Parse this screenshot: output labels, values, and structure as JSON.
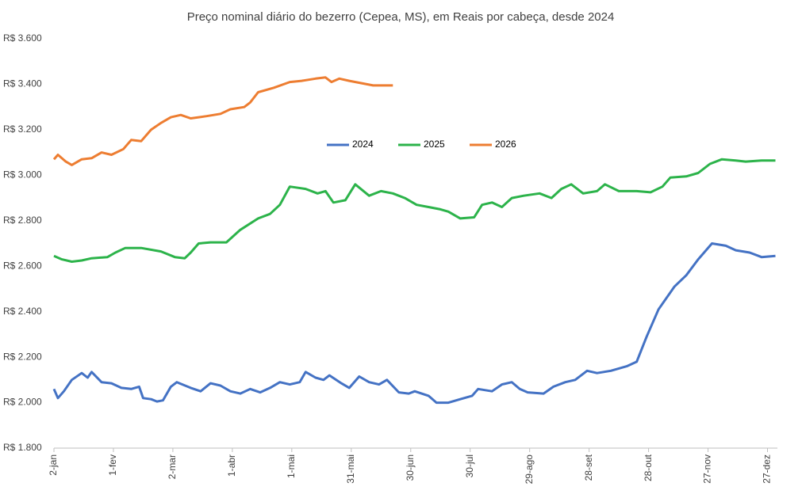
{
  "chart_data": {
    "type": "line",
    "title": "Preço nominal diário do bezerro (Cepea, MS), em Reais por cabeça, desde 2024",
    "xlim": [
      1,
      366
    ],
    "xticks": [
      {
        "value": 1,
        "label": "2-jan"
      },
      {
        "value": 31,
        "label": "1-fev"
      },
      {
        "value": 61,
        "label": "2-mar"
      },
      {
        "value": 91,
        "label": "1-abr"
      },
      {
        "value": 121,
        "label": "1-mai"
      },
      {
        "value": 151,
        "label": "31-mai"
      },
      {
        "value": 181,
        "label": "30-jun"
      },
      {
        "value": 211,
        "label": "30-jul"
      },
      {
        "value": 241,
        "label": "29-ago"
      },
      {
        "value": 271,
        "label": "28-set"
      },
      {
        "value": 301,
        "label": "28-out"
      },
      {
        "value": 331,
        "label": "27-nov"
      },
      {
        "value": 361,
        "label": "27-dez"
      }
    ],
    "ylim": [
      1800,
      3600
    ],
    "yticks": [
      {
        "value": 1800,
        "label": "R$ 1.800"
      },
      {
        "value": 2000,
        "label": "R$ 2.000"
      },
      {
        "value": 2200,
        "label": "R$ 2.200"
      },
      {
        "value": 2400,
        "label": "R$ 2.400"
      },
      {
        "value": 2600,
        "label": "R$ 2.600"
      },
      {
        "value": 2800,
        "label": "R$ 2.800"
      },
      {
        "value": 3000,
        "label": "R$ 3.000"
      },
      {
        "value": 3200,
        "label": "R$ 3.200"
      },
      {
        "value": 3400,
        "label": "R$ 3.400"
      },
      {
        "value": 3600,
        "label": "R$ 3.600"
      }
    ],
    "grid": false,
    "legend": "center",
    "series": [
      {
        "name": "2024",
        "color": "#4472c4",
        "x": [
          1,
          3,
          6,
          10,
          15,
          18,
          20,
          25,
          30,
          35,
          40,
          44,
          46,
          50,
          53,
          56,
          60,
          63,
          70,
          75,
          80,
          85,
          90,
          95,
          100,
          105,
          110,
          115,
          120,
          125,
          128,
          133,
          137,
          140,
          146,
          150,
          155,
          160,
          165,
          169,
          175,
          180,
          183,
          190,
          194,
          200,
          206,
          212,
          215,
          222,
          227,
          232,
          236,
          240,
          248,
          253,
          259,
          264,
          270,
          275,
          282,
          290,
          295,
          300,
          306,
          314,
          320,
          326,
          333,
          340,
          345,
          352,
          358,
          365
        ],
        "values": [
          2060,
          2020,
          2050,
          2100,
          2130,
          2110,
          2135,
          2090,
          2085,
          2065,
          2060,
          2070,
          2020,
          2015,
          2005,
          2010,
          2070,
          2090,
          2065,
          2050,
          2085,
          2075,
          2050,
          2040,
          2060,
          2045,
          2065,
          2090,
          2080,
          2090,
          2135,
          2110,
          2100,
          2120,
          2085,
          2065,
          2115,
          2090,
          2080,
          2100,
          2045,
          2040,
          2050,
          2030,
          2000,
          2000,
          2015,
          2030,
          2060,
          2050,
          2080,
          2090,
          2060,
          2045,
          2040,
          2070,
          2090,
          2100,
          2140,
          2130,
          2140,
          2160,
          2180,
          2290,
          2410,
          2510,
          2560,
          2630,
          2700,
          2690,
          2670,
          2660,
          2640,
          2645
        ]
      },
      {
        "name": "2025",
        "color": "#2cb34a",
        "x": [
          1,
          5,
          10,
          15,
          20,
          28,
          32,
          37,
          45,
          55,
          62,
          67,
          70,
          74,
          80,
          88,
          95,
          104,
          110,
          115,
          120,
          128,
          134,
          138,
          142,
          148,
          153,
          160,
          166,
          172,
          178,
          184,
          190,
          196,
          200,
          206,
          213,
          217,
          222,
          227,
          232,
          238,
          246,
          252,
          257,
          262,
          268,
          275,
          279,
          286,
          295,
          302,
          308,
          312,
          320,
          326,
          332,
          338,
          345,
          350,
          358,
          365
        ],
        "values": [
          2645,
          2630,
          2620,
          2625,
          2635,
          2640,
          2660,
          2680,
          2680,
          2665,
          2640,
          2635,
          2660,
          2700,
          2705,
          2705,
          2760,
          2810,
          2830,
          2870,
          2950,
          2940,
          2920,
          2930,
          2880,
          2890,
          2960,
          2910,
          2930,
          2920,
          2900,
          2870,
          2860,
          2850,
          2840,
          2810,
          2815,
          2870,
          2880,
          2860,
          2900,
          2910,
          2920,
          2900,
          2940,
          2960,
          2920,
          2930,
          2960,
          2930,
          2930,
          2925,
          2950,
          2990,
          2995,
          3010,
          3050,
          3070,
          3065,
          3060,
          3065,
          3065
        ]
      },
      {
        "name": "2026",
        "color": "#ed7d31",
        "x": [
          1,
          3,
          7,
          10,
          15,
          20,
          25,
          30,
          36,
          40,
          45,
          50,
          55,
          60,
          65,
          70,
          78,
          85,
          90,
          97,
          100,
          104,
          112,
          120,
          126,
          133,
          138,
          141,
          145,
          150,
          156,
          162,
          168,
          172
        ],
        "values": [
          3070,
          3090,
          3060,
          3045,
          3070,
          3075,
          3100,
          3090,
          3115,
          3155,
          3150,
          3200,
          3230,
          3255,
          3265,
          3250,
          3260,
          3270,
          3290,
          3300,
          3320,
          3365,
          3385,
          3410,
          3415,
          3425,
          3430,
          3410,
          3425,
          3415,
          3405,
          3395,
          3395,
          3395
        ]
      }
    ]
  }
}
